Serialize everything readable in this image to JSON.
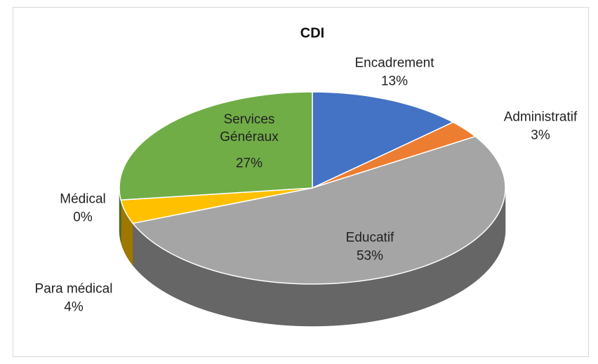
{
  "chart_data": {
    "type": "pie",
    "title": "CDI",
    "categories": [
      "Encadrement",
      "Administratif",
      "Educatif",
      "Para médical",
      "Médical",
      "Services Généraux"
    ],
    "values": [
      13,
      3,
      53,
      4,
      0,
      27
    ],
    "value_labels": [
      "13%",
      "3%",
      "53%",
      "4%",
      "0%",
      "27%"
    ],
    "colors": [
      "#4472c4",
      "#ed7d31",
      "#a5a5a5",
      "#ffc000",
      "#5b9bd5",
      "#70ad47"
    ]
  }
}
